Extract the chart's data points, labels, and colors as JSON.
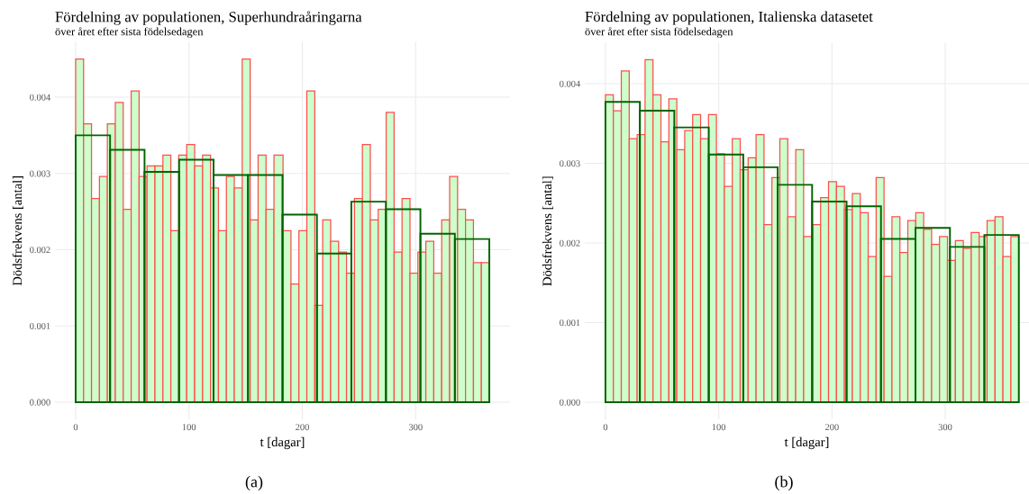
{
  "chart_data": [
    {
      "type": "histogram",
      "title": "Fördelning av populationen, Superhundraåringarna",
      "subtitle": "över året efter sista födelsedagen",
      "xlabel": "t [dagar]",
      "ylabel": "Dödsfrekvens [antal]",
      "annotations": [
        "(a)"
      ],
      "color": "#ccffcc",
      "bins": [
        0,
        7,
        14,
        21,
        28,
        35,
        42,
        49,
        56,
        63,
        70,
        77,
        84,
        91,
        98,
        105,
        112,
        119,
        126,
        133,
        140,
        147,
        154,
        161,
        168,
        175,
        183,
        190,
        197,
        204,
        211,
        218,
        225,
        232,
        239,
        246,
        253,
        260,
        267,
        274,
        281,
        288,
        295,
        302,
        309,
        316,
        323,
        330,
        337,
        344,
        351,
        358,
        365
      ],
      "values": [
        0.0045,
        0.00365,
        0.00267,
        0.00296,
        0.00365,
        0.00393,
        0.00253,
        0.00408,
        0.00296,
        0.0031,
        0.0031,
        0.00324,
        0.00225,
        0.00324,
        0.00338,
        0.0031,
        0.00324,
        0.00281,
        0.00225,
        0.00296,
        0.00281,
        0.0045,
        0.00239,
        0.00324,
        0.00253,
        0.00324,
        0.00225,
        0.00155,
        0.00225,
        0.00408,
        0.00127,
        0.00239,
        0.00211,
        0.00197,
        0.00169,
        0.00267,
        0.00338,
        0.00239,
        0.00253,
        0.0038,
        0.00197,
        0.00267,
        0.00169,
        0.00197,
        0.00211,
        0.00169,
        0.00239,
        0.00296,
        0.00253,
        0.00239,
        0.00183,
        0.00183
      ],
      "series": [
        {
          "type": "bar",
          "color": "#006400",
          "x": [
            15.2,
            45.6,
            76.0,
            106.5,
            136.9,
            167.3,
            197.7,
            228.1,
            258.5,
            289.0,
            319.4,
            349.8
          ],
          "values": [
            0.0035,
            0.00331,
            0.00302,
            0.00318,
            0.00298,
            0.00298,
            0.00246,
            0.00195,
            0.00263,
            0.00253,
            0.00221,
            0.00214
          ]
        }
      ],
      "xlim": [
        -18.25,
        383.25
      ],
      "ylim": [
        -0.000225,
        0.004725
      ],
      "xticks": [
        0,
        100,
        200,
        300
      ],
      "yticks": [
        {
          "value": 0,
          "label": "0.000"
        },
        {
          "value": 0.001,
          "label": "0.001"
        },
        {
          "value": 0.002,
          "label": "0.002"
        },
        {
          "value": 0.003,
          "label": "0.003"
        },
        {
          "value": 0.004,
          "label": "0.004"
        }
      ],
      "grid": true
    },
    {
      "type": "histogram",
      "title": "Fördelning av populationen, Italienska datasetet",
      "subtitle": "över året efter sista födelsedagen",
      "xlabel": "t [dagar]",
      "ylabel": "Dödsfrekvens [antal]",
      "annotations": [
        "(b)"
      ],
      "color": "#ccffcc",
      "bins": [
        0,
        7,
        14,
        21,
        28,
        35,
        42,
        49,
        56,
        63,
        70,
        77,
        84,
        91,
        98,
        105,
        112,
        119,
        126,
        133,
        140,
        147,
        154,
        161,
        168,
        175,
        183,
        190,
        197,
        204,
        211,
        218,
        225,
        232,
        239,
        246,
        253,
        260,
        267,
        274,
        281,
        288,
        295,
        302,
        309,
        316,
        323,
        330,
        337,
        344,
        351,
        358,
        365
      ],
      "values": [
        0.00386,
        0.00366,
        0.00416,
        0.00331,
        0.00336,
        0.0043,
        0.00386,
        0.00327,
        0.00381,
        0.00317,
        0.00341,
        0.00361,
        0.00331,
        0.00361,
        0.00312,
        0.00271,
        0.00331,
        0.00292,
        0.00307,
        0.00336,
        0.00223,
        0.00282,
        0.00331,
        0.00233,
        0.00317,
        0.00208,
        0.00223,
        0.00257,
        0.00277,
        0.00271,
        0.00242,
        0.00262,
        0.00238,
        0.00183,
        0.00282,
        0.00158,
        0.00233,
        0.00188,
        0.00228,
        0.00238,
        0.00217,
        0.00198,
        0.00208,
        0.00178,
        0.00203,
        0.00193,
        0.00213,
        0.00208,
        0.00228,
        0.00233,
        0.00183,
        0.00208
      ],
      "series": [
        {
          "type": "bar",
          "color": "#006400",
          "x": [
            15.2,
            45.6,
            76.0,
            106.5,
            136.9,
            167.3,
            197.7,
            228.1,
            258.5,
            289.0,
            319.4,
            349.8
          ],
          "values": [
            0.00377,
            0.00366,
            0.00345,
            0.00311,
            0.00295,
            0.00273,
            0.00252,
            0.00246,
            0.00205,
            0.00219,
            0.00195,
            0.0021
          ]
        }
      ],
      "xlim": [
        -18.25,
        374
      ],
      "ylim": [
        -0.000215,
        0.004515
      ],
      "xticks": [
        0,
        100,
        200,
        300
      ],
      "yticks": [
        {
          "value": 0,
          "label": "0.000"
        },
        {
          "value": 0.001,
          "label": "0.001"
        },
        {
          "value": 0.002,
          "label": "0.002"
        },
        {
          "value": 0.003,
          "label": "0.003"
        },
        {
          "value": 0.004,
          "label": "0.004"
        }
      ],
      "grid": true
    }
  ]
}
